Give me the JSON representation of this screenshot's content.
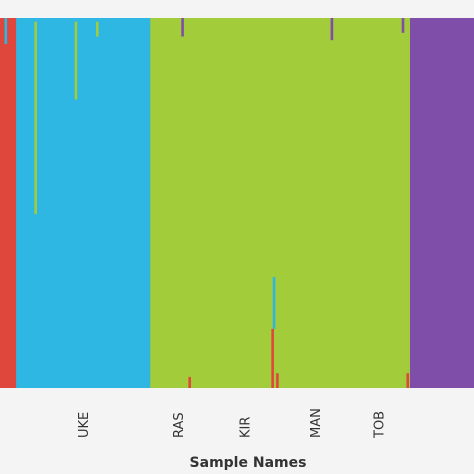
{
  "chart_data": {
    "type": "bar",
    "stacked": true,
    "xlabel": "Sample Names",
    "ylabel": "",
    "ylim": [
      0,
      1
    ],
    "colors": {
      "cluster_red": "#e0473c",
      "cluster_blue": "#2db7e2",
      "cluster_green": "#a2cc3a",
      "cluster_purple": "#7e4ea8"
    },
    "populations": [
      {
        "label": "",
        "main_color": "cluster_red",
        "sample_fraction": 0.034
      },
      {
        "label": "UKE",
        "main_color": "cluster_blue",
        "sample_fraction": 0.283
      },
      {
        "label": "RAS",
        "main_color": "cluster_green",
        "sample_fraction": 0.117
      },
      {
        "label": "KIR",
        "main_color": "cluster_green",
        "sample_fraction": 0.164
      },
      {
        "label": "MAN",
        "main_color": "cluster_green",
        "sample_fraction": 0.134
      },
      {
        "label": "TOB",
        "main_color": "cluster_green",
        "sample_fraction": 0.133
      },
      {
        "label": "",
        "main_color": "cluster_purple",
        "sample_fraction": 0.135
      }
    ],
    "notable_admixture": [
      {
        "at": 0.012,
        "color": "cluster_blue",
        "from": 0.93,
        "to": 1.0
      },
      {
        "at": 0.075,
        "color": "cluster_green",
        "from": 0.47,
        "to": 0.99
      },
      {
        "at": 0.16,
        "color": "cluster_green",
        "from": 0.78,
        "to": 0.99
      },
      {
        "at": 0.205,
        "color": "cluster_green",
        "from": 0.95,
        "to": 0.99
      },
      {
        "at": 0.575,
        "color": "cluster_red",
        "from": 0.0,
        "to": 0.16
      },
      {
        "at": 0.578,
        "color": "cluster_blue",
        "from": 0.16,
        "to": 0.3
      },
      {
        "at": 0.585,
        "color": "cluster_red",
        "from": 0.0,
        "to": 0.04
      },
      {
        "at": 0.4,
        "color": "cluster_red",
        "from": 0.0,
        "to": 0.03
      },
      {
        "at": 0.86,
        "color": "cluster_red",
        "from": 0.0,
        "to": 0.04
      },
      {
        "at": 0.385,
        "color": "cluster_purple",
        "from": 0.95,
        "to": 1.0
      },
      {
        "at": 0.7,
        "color": "cluster_purple",
        "from": 0.94,
        "to": 1.0
      },
      {
        "at": 0.85,
        "color": "cluster_purple",
        "from": 0.96,
        "to": 1.0
      }
    ]
  }
}
